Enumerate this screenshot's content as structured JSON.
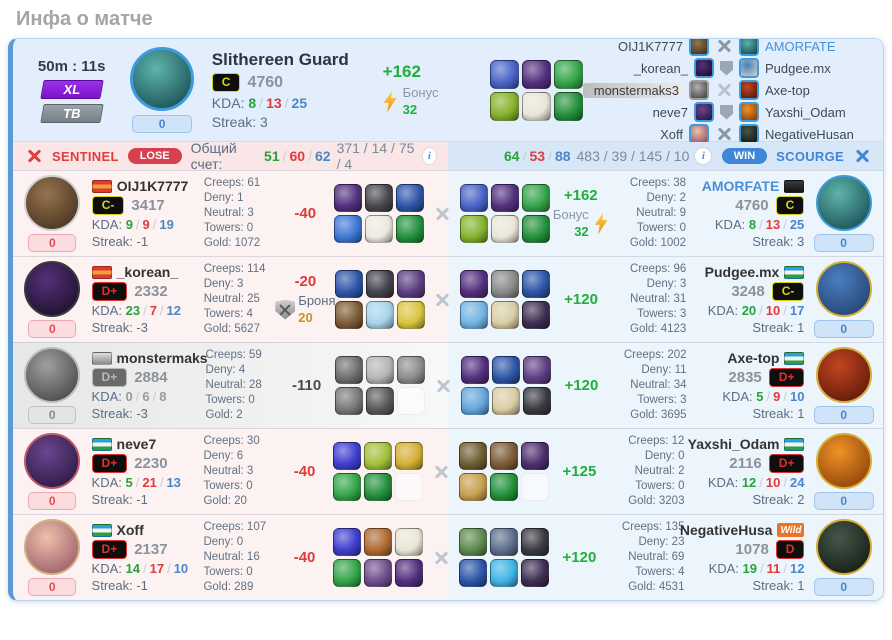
{
  "page_title": "Инфа о матче",
  "labels": {
    "kda": "KDA:",
    "streak": "Streak:",
    "creeps": "Creeps:",
    "deny": "Deny:",
    "neutral": "Neutral:",
    "towers": "Towers:",
    "gold": "Gold:",
    "score": "Общий счет:"
  },
  "colors": {
    "green": "#1faf3a",
    "red": "#e03a3a",
    "kda_assist_blue": "#4a86c8",
    "link_blue": "#4a90d9"
  },
  "summary": {
    "duration": "50m : 11s",
    "mode_badge": "XL",
    "tv_badge": "ТВ",
    "level_badge": "0",
    "hero": {
      "name": "Slithereen Guard",
      "avatar": {
        "colors": [
          "#5fb4ac",
          "#0e4046"
        ],
        "border": "#3d9be0"
      }
    },
    "rank": {
      "label": "C",
      "color": "#d8d21f"
    },
    "rating": "4760",
    "kda": [
      "8",
      "13",
      "25"
    ],
    "streak": "3",
    "change": "+162",
    "bonus": {
      "label": "Бонус",
      "value": "32"
    },
    "items": [
      "#4a63c8",
      "#53307e",
      "#35a54a",
      "#86b32d",
      "#e9e6d8",
      "#23913c"
    ],
    "matchups": [
      {
        "left": "OIJ1K7777",
        "right": "AMORFATE",
        "vs": "swords",
        "right_link": true,
        "left_icon": [
          "#96744e",
          "#3c2817"
        ],
        "right_icon": [
          "#5fb4ac",
          "#0e4046"
        ]
      },
      {
        "left": "_korean_",
        "right": "Pudgee.mx",
        "vs": "shield",
        "left_icon": [
          "#55307a",
          "#140c20"
        ],
        "right_icon": [
          "#4a7ec0",
          "#d8cfc0"
        ]
      },
      {
        "left": "monstermaks3",
        "right": "Axe-top",
        "vs": "swords",
        "left_muted": true,
        "left_icon": [
          "#b0b0b0",
          "#3a3a3a"
        ],
        "right_icon": [
          "#c44522",
          "#4e1206"
        ]
      },
      {
        "left": "neve7",
        "right": "Yaxshi_Odam",
        "vs": "shield",
        "left_icon": [
          "#6a4690",
          "#221236"
        ],
        "right_icon": [
          "#f09326",
          "#7e3406"
        ]
      },
      {
        "left": "Xoff",
        "right": "NegativeHusan",
        "vs": "swords",
        "left_icon": [
          "#eec0ac",
          "#8e4e5e"
        ],
        "right_icon": [
          "#46564a",
          "#0c140c"
        ]
      }
    ]
  },
  "scoreboard": {
    "left": {
      "team": "SENTINEL",
      "result": "LOSE",
      "kda": [
        "51",
        "60",
        "62"
      ],
      "stats": "371 / 14 / 75 / 4"
    },
    "right": {
      "team": "SCOURGE",
      "result": "WIN",
      "kda": [
        "64",
        "53",
        "88"
      ],
      "stats": "483 / 39 / 145 / 10"
    }
  },
  "rows": [
    {
      "left": {
        "name": "OIJ1K7777",
        "flag": {
          "colors": [
            "#e03a2f",
            "#f0a03a",
            "#e03a2f"
          ]
        },
        "rank": {
          "label": "C-",
          "color": "#d8d21f"
        },
        "rating": "3417",
        "kda": [
          "9",
          "9",
          "19"
        ],
        "streak": "-1",
        "badge": "0",
        "avatar": {
          "colors": [
            "#96744e",
            "#3c2817"
          ],
          "border": "#cfcfcf"
        },
        "stats": {
          "creeps": "61",
          "deny": "1",
          "neutral": "3",
          "towers": "0",
          "gold": "1072"
        },
        "change": "-40",
        "change_color": "#e03a3a",
        "items": [
          "#53307e",
          "#47474d",
          "#2d55a8",
          "#3d78d4",
          "#ece9df",
          "#23913c"
        ]
      },
      "right": {
        "name": "AMORFATE",
        "name_link": true,
        "flag": {
          "colors": [
            "#3a3a3a",
            "#141414"
          ]
        },
        "rank": {
          "label": "C",
          "color": "#d8d21f"
        },
        "rating": "4760",
        "kda": [
          "8",
          "13",
          "25"
        ],
        "streak": "3",
        "badge": "0",
        "avatar": {
          "colors": [
            "#5fb4ac",
            "#0e4046"
          ],
          "border": "#3d9be0"
        },
        "stats": {
          "creeps": "38",
          "deny": "2",
          "neutral": "9",
          "towers": "0",
          "gold": "1002"
        },
        "change": "+162",
        "change_color": "#1faf3a",
        "bonus": {
          "label": "Бонус",
          "value": "32"
        },
        "items": [
          "#4a63c8",
          "#53307e",
          "#35a54a",
          "#86b32d",
          "#e9e6d8",
          "#23913c"
        ]
      }
    },
    {
      "left": {
        "name": "_korean_",
        "flag": {
          "colors": [
            "#e03a2f",
            "#f0a03a",
            "#e03a2f"
          ]
        },
        "rank": {
          "label": "D+",
          "color": "#e03131"
        },
        "rating": "2332",
        "kda": [
          "23",
          "7",
          "12"
        ],
        "streak": "-3",
        "badge": "0",
        "avatar": {
          "colors": [
            "#55307a",
            "#140c20"
          ],
          "border": "#3a3a3a"
        },
        "stats": {
          "creeps": "114",
          "deny": "3",
          "neutral": "25",
          "towers": "4",
          "gold": "5627"
        },
        "change": "-20",
        "change_color": "#e03a3a",
        "armor": {
          "label": "Броня",
          "value": "20"
        },
        "items": [
          "#2d55a8",
          "#43424e",
          "#5d3f82",
          "#7d5c36",
          "#a6d4ea",
          "#d9c53d"
        ]
      },
      "right": {
        "name": "Pudgee.mx",
        "flag": {
          "colors": [
            "#2aa0d8",
            "#f2f2f2",
            "#2f9e3f"
          ]
        },
        "rank": {
          "label": "C-",
          "color": "#d8d21f"
        },
        "rating": "3248",
        "kda": [
          "20",
          "10",
          "17"
        ],
        "streak": "1",
        "badge": "0",
        "avatar": {
          "colors": [
            "#4a7ec0",
            "#1e3a66"
          ],
          "border": "#d4af37"
        },
        "stats": {
          "creeps": "96",
          "deny": "3",
          "neutral": "31",
          "towers": "3",
          "gold": "4123"
        },
        "change": "+120",
        "change_color": "#1faf3a",
        "items": [
          "#53307e",
          "#8a8a8a",
          "#2d55a8",
          "#74b4e4",
          "#d9cda6",
          "#3d2f52"
        ]
      }
    },
    {
      "muted_left": true,
      "left": {
        "name": "monstermaks",
        "muted": true,
        "flag": {
          "colors": [
            "#e0e0e0",
            "#8a8a8a"
          ]
        },
        "rank": {
          "label": "D+",
          "color": "#b8b8b8",
          "muted": true
        },
        "rating": "2884",
        "kda": [
          "0",
          "6",
          "8"
        ],
        "streak": "-3",
        "badge": "0",
        "badge_gray": true,
        "avatar": {
          "colors": [
            "#a0a0a0",
            "#3a3a3a"
          ],
          "border": "#bdbdbd"
        },
        "stats": {
          "creeps": "59",
          "deny": "4",
          "neutral": "28",
          "towers": "0",
          "gold": "2"
        },
        "change": "-110",
        "change_color": "#4a4a4a",
        "items": [
          "#6e6e6e",
          "#b5b5b5",
          "#8c8c8c",
          "#7a7a7a",
          "#5a5a5a",
          "empty"
        ]
      },
      "right": {
        "name": "Axe-top",
        "flag": {
          "colors": [
            "#2aa0d8",
            "#f2f2f2",
            "#2f9e3f"
          ]
        },
        "rank": {
          "label": "D+",
          "color": "#e03131"
        },
        "rating": "2835",
        "kda": [
          "5",
          "9",
          "10"
        ],
        "streak": "1",
        "badge": "0",
        "avatar": {
          "colors": [
            "#c44522",
            "#4e1206"
          ],
          "border": "#d4af37"
        },
        "stats": {
          "creeps": "202",
          "deny": "11",
          "neutral": "34",
          "towers": "3",
          "gold": "3695"
        },
        "change": "+120",
        "change_color": "#1faf3a",
        "items": [
          "#53307e",
          "#2d55a8",
          "#5d3f82",
          "#64a6dc",
          "#d9cda6",
          "#3a3a42"
        ]
      }
    },
    {
      "left": {
        "name": "neve7",
        "flag": {
          "colors": [
            "#2aa0d8",
            "#f2f2f2",
            "#2f9e3f"
          ]
        },
        "rank": {
          "label": "D+",
          "color": "#e03131"
        },
        "rating": "2230",
        "kda": [
          "5",
          "21",
          "13"
        ],
        "streak": "-1",
        "badge": "0",
        "avatar": {
          "colors": [
            "#6a4690",
            "#221236"
          ],
          "border": "#c05a6a"
        },
        "stats": {
          "creeps": "30",
          "deny": "6",
          "neutral": "3",
          "towers": "0",
          "gold": "20"
        },
        "change": "-40",
        "change_color": "#e03a3a",
        "items": [
          "#3f3fd0",
          "#a3c13a",
          "#d4af37",
          "#35a54a",
          "#23913c",
          "empty"
        ]
      },
      "right": {
        "name": "Yaxshi_Odam",
        "flag": {
          "colors": [
            "#2aa0d8",
            "#f2f2f2",
            "#2f9e3f"
          ]
        },
        "rank": {
          "label": "D+",
          "color": "#e03131"
        },
        "rating": "2116",
        "kda": [
          "12",
          "10",
          "24"
        ],
        "streak": "2",
        "badge": "0",
        "avatar": {
          "colors": [
            "#f09326",
            "#7e3406"
          ],
          "border": "#d4af37"
        },
        "stats": {
          "creeps": "12",
          "deny": "0",
          "neutral": "2",
          "towers": "0",
          "gold": "3203"
        },
        "change": "+125",
        "change_color": "#1faf3a",
        "items": [
          "#6e5e32",
          "#7d5c36",
          "#4d2f6e",
          "#c8a050",
          "#23913c",
          "empty"
        ]
      }
    },
    {
      "left": {
        "name": "Xoff",
        "flag": {
          "colors": [
            "#2aa0d8",
            "#f2f2f2",
            "#2f9e3f"
          ]
        },
        "rank": {
          "label": "D+",
          "color": "#e03131"
        },
        "rating": "2137",
        "kda": [
          "14",
          "17",
          "10"
        ],
        "streak": "-1",
        "badge": "0",
        "avatar": {
          "colors": [
            "#eec0ac",
            "#8e4e5e"
          ],
          "border": "#d0b080"
        },
        "stats": {
          "creeps": "107",
          "deny": "0",
          "neutral": "16",
          "towers": "0",
          "gold": "289"
        },
        "change": "-40",
        "change_color": "#e03a3a",
        "items": [
          "#3f3fd0",
          "#b06a32",
          "#e9e6d8",
          "#35a54a",
          "#6e4f8e",
          "#53307e"
        ]
      },
      "right": {
        "name": "NegativeHusa",
        "logo": {
          "text": "Wild",
          "color": "#e8762a"
        },
        "rank": {
          "label": "D",
          "color": "#e03131"
        },
        "rating": "1078",
        "kda": [
          "19",
          "11",
          "12"
        ],
        "streak": "1",
        "badge": "0",
        "avatar": {
          "colors": [
            "#46564a",
            "#0c140c"
          ],
          "border": "#d4af37"
        },
        "stats": {
          "creeps": "135",
          "deny": "23",
          "neutral": "69",
          "towers": "4",
          "gold": "4531"
        },
        "change": "+120",
        "change_color": "#1faf3a",
        "items": [
          "#5e8a4e",
          "#5e6e8e",
          "#3a3a42",
          "#2d55a8",
          "#3fb4e4",
          "#3d2f52"
        ]
      }
    }
  ]
}
